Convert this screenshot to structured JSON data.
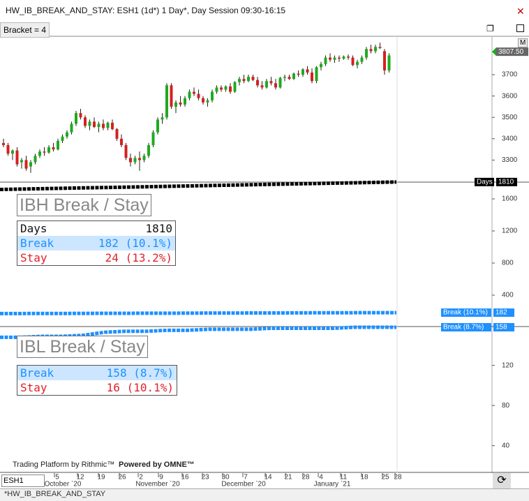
{
  "window": {
    "title": "HW_IB_BREAK_AND_STAY: ESH1 (1d*) 1 Day*, Day Session 09:30-16:15",
    "bracket": "Bracket = 4",
    "scale_button": "M"
  },
  "chart_data": [
    {
      "type": "candlestick",
      "candles": [
        [
          3380,
          3400,
          3360,
          3370
        ],
        [
          3370,
          3380,
          3320,
          3330
        ],
        [
          3330,
          3350,
          3300,
          3345
        ],
        [
          3345,
          3360,
          3270,
          3280
        ],
        [
          3290,
          3310,
          3260,
          3300
        ],
        [
          3300,
          3320,
          3250,
          3260
        ],
        [
          3270,
          3300,
          3240,
          3290
        ],
        [
          3290,
          3330,
          3280,
          3320
        ],
        [
          3320,
          3350,
          3310,
          3340
        ],
        [
          3340,
          3360,
          3320,
          3335
        ],
        [
          3335,
          3370,
          3330,
          3360
        ],
        [
          3360,
          3380,
          3340,
          3350
        ],
        [
          3350,
          3400,
          3345,
          3390
        ],
        [
          3390,
          3420,
          3380,
          3410
        ],
        [
          3410,
          3440,
          3400,
          3430
        ],
        [
          3430,
          3480,
          3420,
          3470
        ],
        [
          3470,
          3530,
          3460,
          3520
        ],
        [
          3520,
          3540,
          3490,
          3500
        ],
        [
          3500,
          3510,
          3450,
          3460
        ],
        [
          3460,
          3490,
          3440,
          3480
        ],
        [
          3480,
          3500,
          3450,
          3455
        ],
        [
          3455,
          3480,
          3430,
          3470
        ],
        [
          3470,
          3490,
          3440,
          3450
        ],
        [
          3450,
          3480,
          3440,
          3475
        ],
        [
          3475,
          3490,
          3440,
          3445
        ],
        [
          3445,
          3450,
          3390,
          3400
        ],
        [
          3400,
          3420,
          3360,
          3370
        ],
        [
          3370,
          3380,
          3300,
          3310
        ],
        [
          3310,
          3330,
          3270,
          3290
        ],
        [
          3290,
          3320,
          3280,
          3310
        ],
        [
          3310,
          3340,
          3250,
          3300
        ],
        [
          3300,
          3330,
          3290,
          3320
        ],
        [
          3320,
          3380,
          3310,
          3370
        ],
        [
          3370,
          3440,
          3360,
          3430
        ],
        [
          3430,
          3500,
          3420,
          3490
        ],
        [
          3490,
          3520,
          3470,
          3500
        ],
        [
          3500,
          3660,
          3490,
          3650
        ],
        [
          3650,
          3660,
          3540,
          3550
        ],
        [
          3550,
          3580,
          3520,
          3570
        ],
        [
          3570,
          3600,
          3550,
          3560
        ],
        [
          3560,
          3600,
          3550,
          3590
        ],
        [
          3590,
          3630,
          3580,
          3620
        ],
        [
          3620,
          3640,
          3600,
          3610
        ],
        [
          3610,
          3630,
          3580,
          3590
        ],
        [
          3590,
          3600,
          3560,
          3570
        ],
        [
          3570,
          3590,
          3550,
          3580
        ],
        [
          3580,
          3630,
          3570,
          3620
        ],
        [
          3620,
          3650,
          3610,
          3640
        ],
        [
          3640,
          3650,
          3620,
          3630
        ],
        [
          3630,
          3650,
          3620,
          3645
        ],
        [
          3645,
          3660,
          3610,
          3620
        ],
        [
          3620,
          3670,
          3615,
          3665
        ],
        [
          3665,
          3690,
          3650,
          3680
        ],
        [
          3680,
          3700,
          3660,
          3670
        ],
        [
          3670,
          3700,
          3665,
          3690
        ],
        [
          3690,
          3700,
          3670,
          3675
        ],
        [
          3675,
          3690,
          3640,
          3650
        ],
        [
          3650,
          3670,
          3630,
          3640
        ],
        [
          3640,
          3680,
          3635,
          3670
        ],
        [
          3670,
          3690,
          3650,
          3660
        ],
        [
          3660,
          3680,
          3630,
          3640
        ],
        [
          3640,
          3690,
          3635,
          3685
        ],
        [
          3685,
          3700,
          3670,
          3690
        ],
        [
          3690,
          3700,
          3675,
          3680
        ],
        [
          3680,
          3710,
          3675,
          3705
        ],
        [
          3705,
          3720,
          3690,
          3700
        ],
        [
          3700,
          3730,
          3690,
          3725
        ],
        [
          3725,
          3740,
          3700,
          3710
        ],
        [
          3710,
          3730,
          3660,
          3670
        ],
        [
          3670,
          3740,
          3660,
          3735
        ],
        [
          3735,
          3760,
          3720,
          3750
        ],
        [
          3750,
          3790,
          3740,
          3780
        ],
        [
          3780,
          3800,
          3760,
          3770
        ],
        [
          3770,
          3790,
          3755,
          3780
        ],
        [
          3780,
          3790,
          3760,
          3775
        ],
        [
          3775,
          3790,
          3770,
          3785
        ],
        [
          3785,
          3795,
          3770,
          3780
        ],
        [
          3780,
          3790,
          3740,
          3745
        ],
        [
          3745,
          3770,
          3730,
          3760
        ],
        [
          3760,
          3790,
          3750,
          3780
        ],
        [
          3780,
          3830,
          3770,
          3820
        ],
        [
          3820,
          3840,
          3800,
          3810
        ],
        [
          3810,
          3840,
          3800,
          3830
        ],
        [
          3830,
          3850,
          3820,
          3825
        ],
        [
          3810,
          3820,
          3700,
          3720
        ],
        [
          3720,
          3800,
          3710,
          3790
        ]
      ],
      "ylim": [
        3200,
        3870
      ],
      "yticks": [
        3300,
        3400,
        3500,
        3600,
        3700
      ],
      "last_price": {
        "value": 3807.5,
        "label": "3807.50"
      },
      "up_color": "#1faa1f",
      "down_color": "#d42020"
    },
    {
      "type": "line",
      "title": "IBH Break / Stay",
      "series": [
        {
          "name": "Days",
          "color": "#000000",
          "values": [
            1717,
            1722,
            1727,
            1732,
            1737,
            1741,
            1746,
            1751,
            1756,
            1761,
            1766,
            1771,
            1776,
            1781,
            1786,
            1791,
            1796,
            1800,
            1805,
            1810
          ]
        },
        {
          "name": "Break (10.1%)",
          "color": "#1e90ff",
          "values": [
            171,
            171,
            172,
            172,
            173,
            174,
            174,
            175,
            175,
            176,
            177,
            177,
            178,
            178,
            179,
            180,
            180,
            181,
            181,
            182
          ]
        }
      ],
      "ylim": [
        0,
        1800
      ],
      "yticks": [
        400,
        800,
        1200,
        1600
      ],
      "table": {
        "rows": [
          [
            "Days",
            "1810"
          ],
          [
            "Break",
            "182 (10.1%)"
          ],
          [
            "Stay",
            "24 (13.2%)"
          ]
        ]
      }
    },
    {
      "type": "line",
      "title": "IBL Break / Stay",
      "series": [
        {
          "name": "Break (8.7%)",
          "color": "#1e90ff",
          "values": [
            148,
            148,
            149,
            149,
            150,
            153,
            154,
            154,
            155,
            155,
            156,
            156,
            156,
            157,
            157,
            157,
            157,
            158,
            158,
            158
          ]
        }
      ],
      "ylim": [
        14,
        158
      ],
      "yticks": [
        40,
        80,
        120
      ],
      "table": {
        "rows": [
          [
            "Break",
            "158 (8.7%)"
          ],
          [
            "Stay",
            "16 (10.1%)"
          ]
        ]
      }
    }
  ],
  "time_axis": {
    "months": [
      "October `20",
      "November `20",
      "December `20",
      "January `21"
    ],
    "days": [
      "5",
      "12",
      "19",
      "26",
      "2",
      "9",
      "16",
      "23",
      "30",
      "7",
      "14",
      "21",
      "28",
      "4",
      "11",
      "18",
      "25",
      "28"
    ]
  },
  "footer": {
    "branding": [
      "Trading Platform by Rithmic™",
      "Powered by OMNE™"
    ],
    "symbol": "ESH1",
    "tab": "*HW_IB_BREAK_AND_STAY"
  }
}
